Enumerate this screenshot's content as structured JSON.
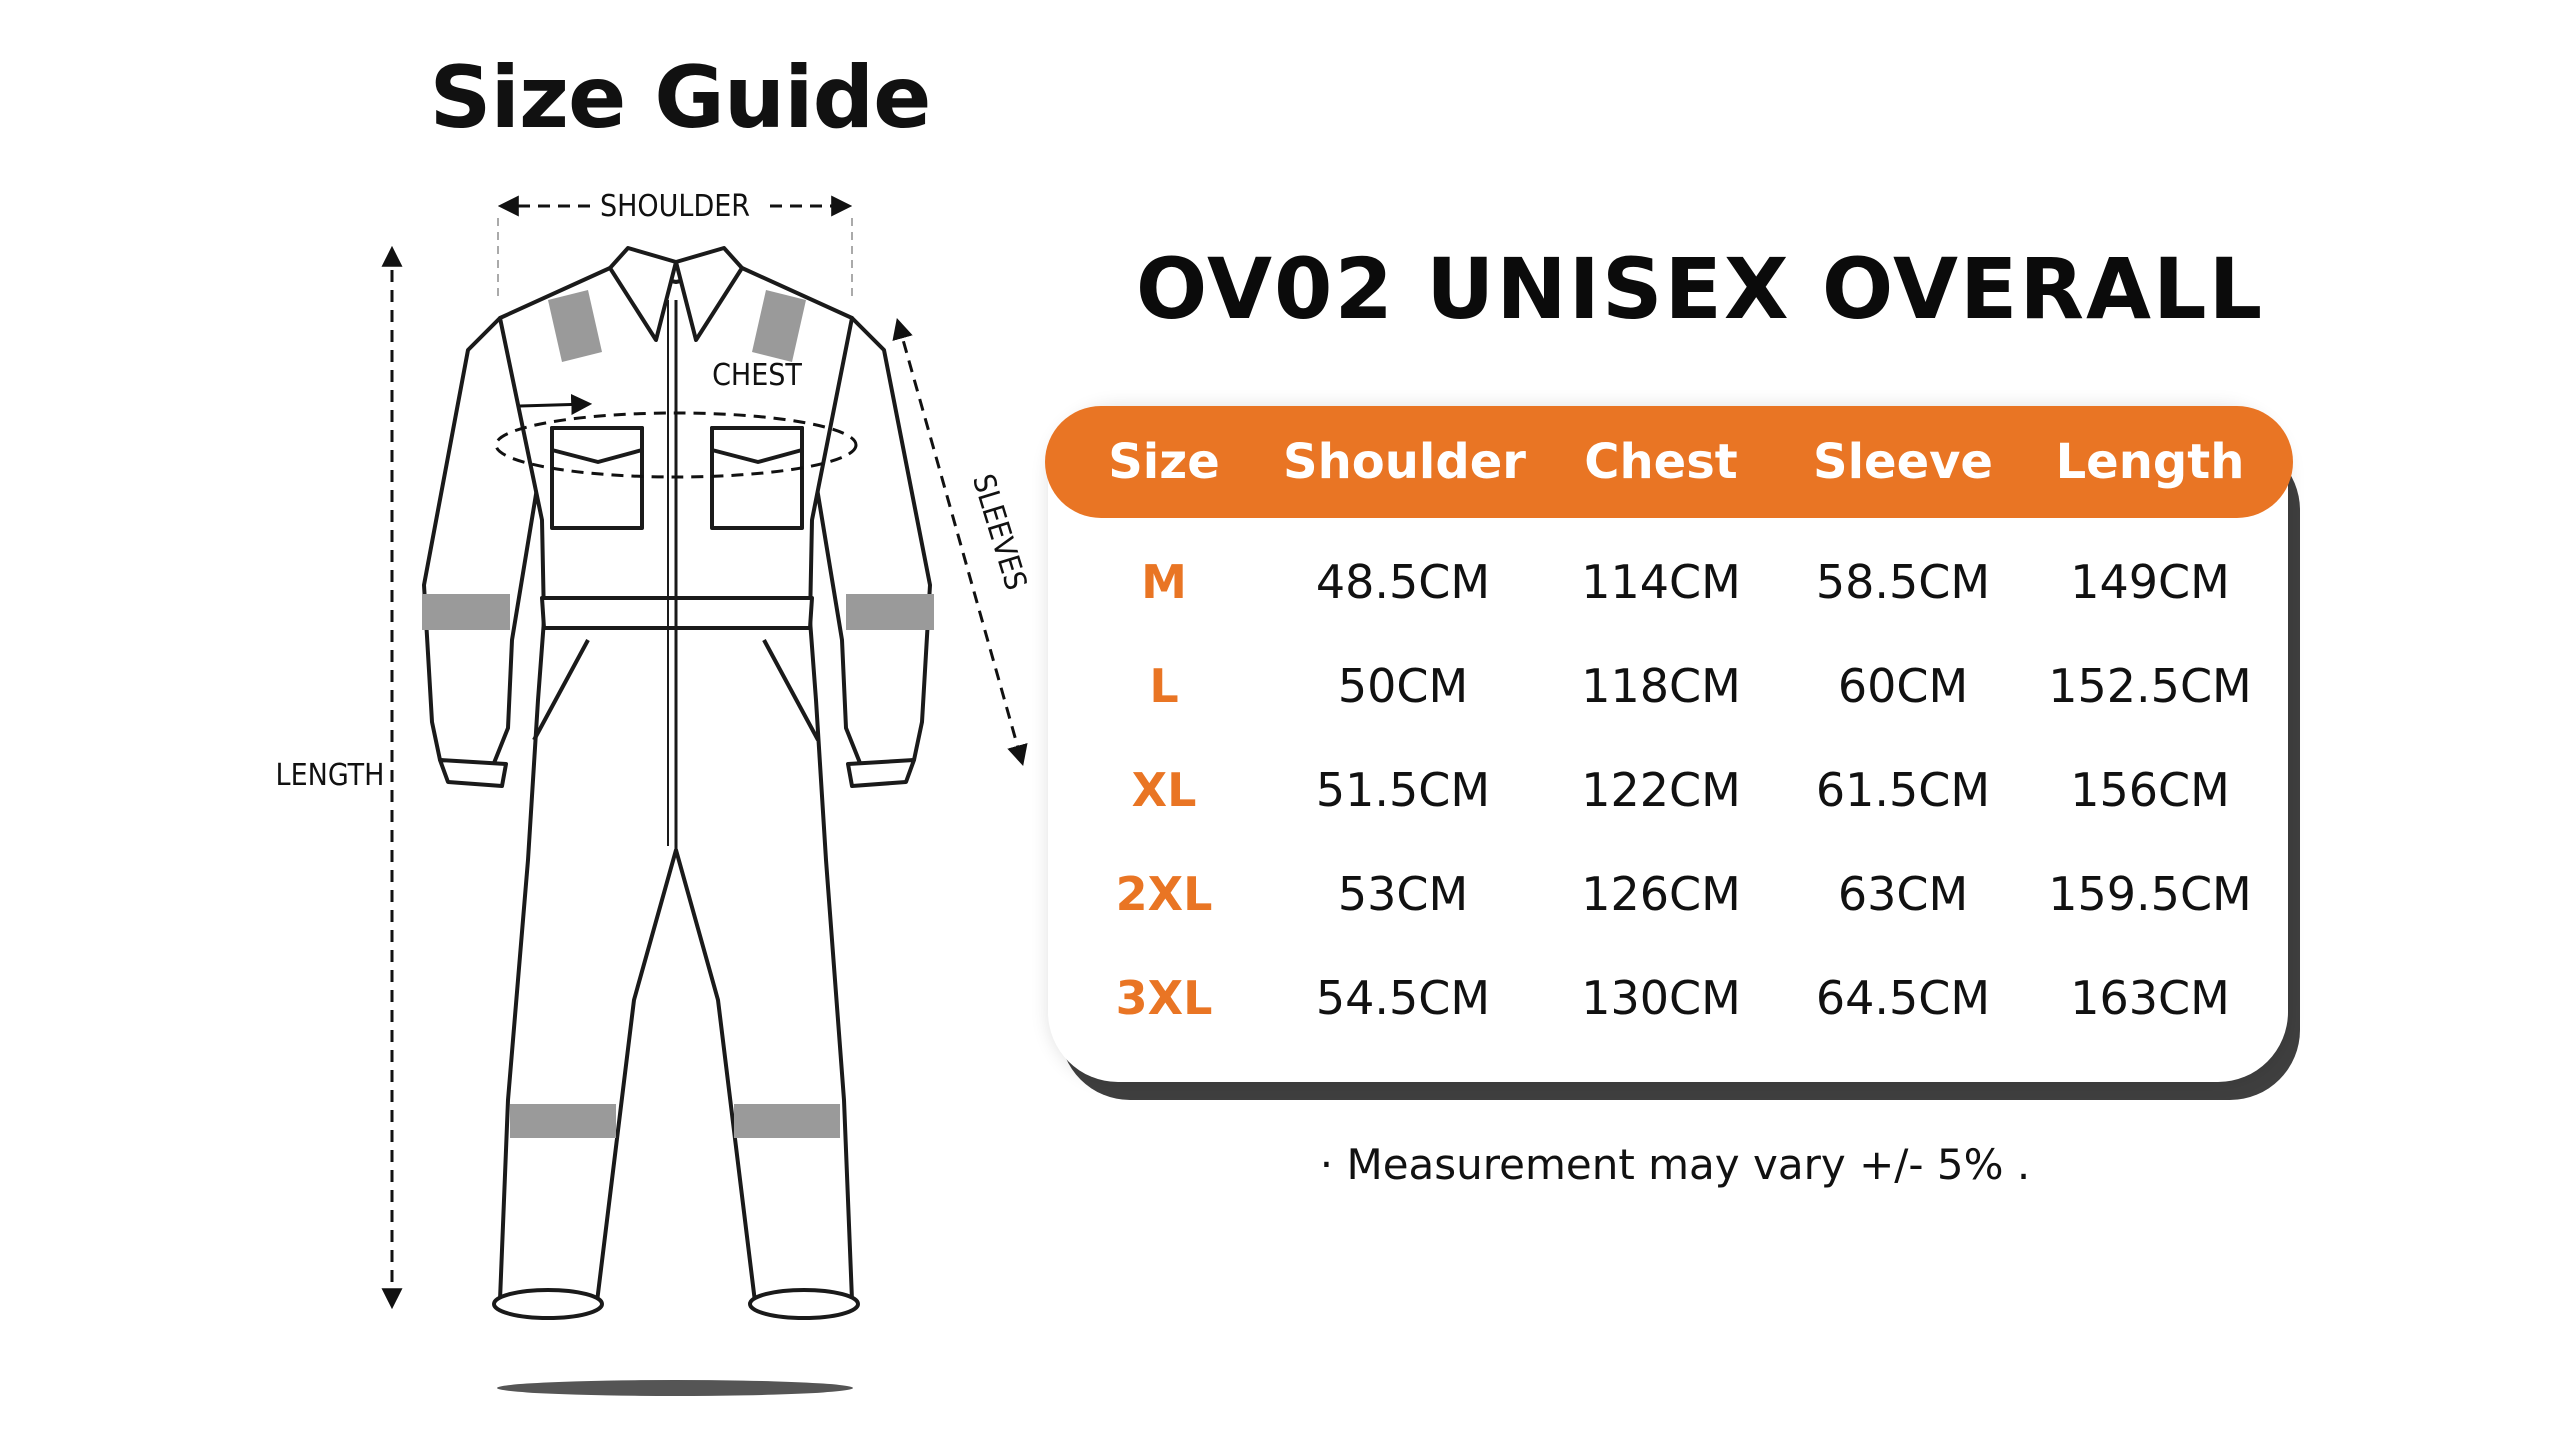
{
  "guide": {
    "title": "Size Guide",
    "labels": {
      "shoulder": "SHOULDER",
      "chest": "CHEST",
      "sleeves": "SLEEVES",
      "length": "LENGTH"
    }
  },
  "product": {
    "title": "OV02 UNISEX OVERALL"
  },
  "table": {
    "headers": [
      "Size",
      "Shoulder",
      "Chest",
      "Sleeve",
      "Length"
    ],
    "rows": [
      [
        "M",
        "48.5CM",
        "114CM",
        "58.5CM",
        "149CM"
      ],
      [
        "L",
        "50CM",
        "118CM",
        "60CM",
        "152.5CM"
      ],
      [
        "XL",
        "51.5CM",
        "122CM",
        "61.5CM",
        "156CM"
      ],
      [
        "2XL",
        "53CM",
        "126CM",
        "63CM",
        "159.5CM"
      ],
      [
        "3XL",
        "54.5CM",
        "130CM",
        "64.5CM",
        "163CM"
      ]
    ]
  },
  "note": "· Measurement may vary +/- 5% .",
  "colors": {
    "accent": "#e97524",
    "reflective_tape": "#9a9a9a",
    "shadow": "#3f3f3f"
  }
}
